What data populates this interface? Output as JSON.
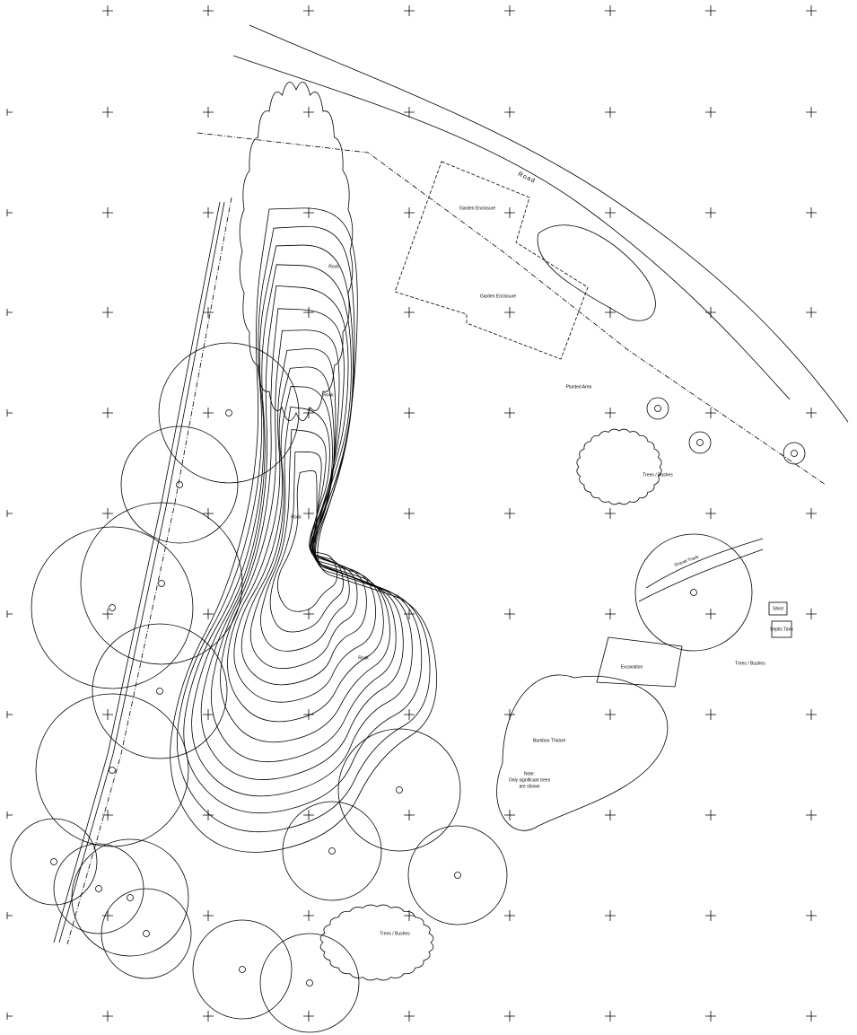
{
  "plan": {
    "labels": [
      "Road",
      "Garden Enclosure",
      "Garden Enclosure",
      "Rock",
      "Rock",
      "Rock",
      "Rock",
      "Planted Area",
      "Trees / Bushes",
      "Trees / Bushes",
      "Trees / Bushes",
      "Shed",
      "Septic Tank",
      "Excavation",
      "Bamboo Thicket",
      "Gravel Track"
    ],
    "note": [
      "Note:",
      "Only significant trees",
      "are shown"
    ]
  }
}
